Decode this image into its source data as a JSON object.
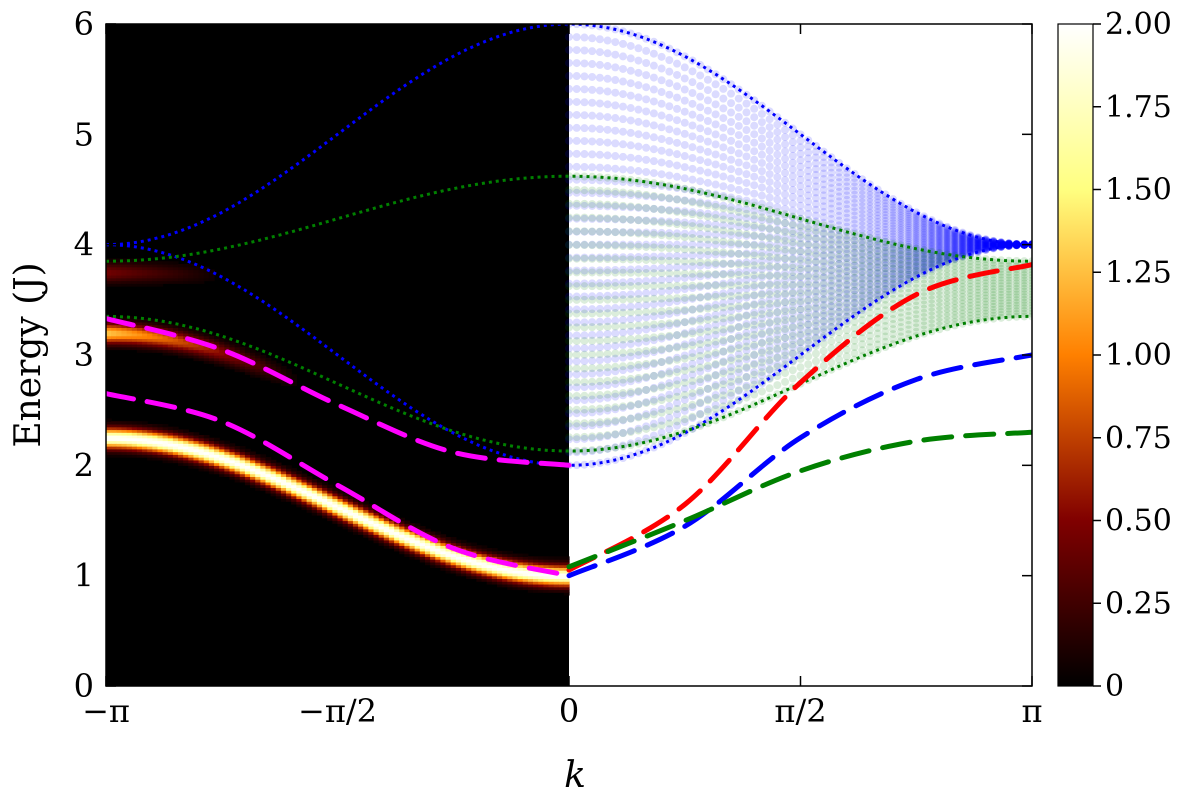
{
  "chart_data": {
    "type": "heatmap",
    "title": "",
    "xlabel": "k",
    "ylabel": "Energy (J)",
    "xlim": [
      -3.14159,
      3.14159
    ],
    "ylim": [
      0,
      6
    ],
    "x_ticks": [
      {
        "value": -3.14159,
        "label": "−π"
      },
      {
        "value": -1.5708,
        "label": "−π/2"
      },
      {
        "value": 0,
        "label": "0"
      },
      {
        "value": 1.5708,
        "label": "π/2"
      },
      {
        "value": 3.14159,
        "label": "π"
      }
    ],
    "y_ticks": [
      {
        "value": 0,
        "label": "0"
      },
      {
        "value": 1,
        "label": "1"
      },
      {
        "value": 2,
        "label": "2"
      },
      {
        "value": 3,
        "label": "3"
      },
      {
        "value": 4,
        "label": "4"
      },
      {
        "value": 5,
        "label": "5"
      },
      {
        "value": 6,
        "label": "6"
      }
    ],
    "colorbar": {
      "min": 0,
      "max": 2,
      "colormap": "afmhot",
      "ticks": [
        {
          "value": 0,
          "label": "0"
        },
        {
          "value": 0.25,
          "label": "0.25"
        },
        {
          "value": 0.5,
          "label": "0.50"
        },
        {
          "value": 0.75,
          "label": "0.75"
        },
        {
          "value": 1.0,
          "label": "1.00"
        },
        {
          "value": 1.25,
          "label": "1.25"
        },
        {
          "value": 1.5,
          "label": "1.50"
        },
        {
          "value": 1.75,
          "label": "1.75"
        },
        {
          "value": 2.0,
          "label": "2.00"
        }
      ]
    },
    "heatmap_bands": [
      {
        "center_at_minus_pi": 2.25,
        "center_at_zero": 1.0,
        "peak_intensity": 2.0
      },
      {
        "center_at_minus_pi": 3.2,
        "center_at_zero": 2.0,
        "peak_intensity": 1.3,
        "visible_until_k": -1.8
      },
      {
        "center_at_minus_pi": 3.75,
        "center_at_zero": 3.6,
        "peak_intensity": 0.45,
        "visible_until_k": -2.3
      }
    ],
    "continuum_blue": {
      "color": "#0000ff",
      "lower_at_zero": 2.0,
      "lower_at_pi": 4.0,
      "upper_at_zero": 6.0,
      "upper_at_pi": 4.0
    },
    "continuum_green": {
      "color": "#008000",
      "lower_at_zero": 2.13,
      "lower_at_pi": 3.35,
      "upper_at_zero": 4.62,
      "upper_at_pi": 3.85
    },
    "dashed_series": [
      {
        "color": "#ff00ff",
        "x": [
          -3.14159,
          -2.36,
          -1.57,
          -0.79,
          0
        ],
        "y": [
          2.65,
          2.4,
          1.82,
          1.25,
          1.0
        ]
      },
      {
        "color": "#ff00ff",
        "x": [
          -3.14159,
          -2.36,
          -1.57,
          -0.79,
          0
        ],
        "y": [
          3.33,
          3.05,
          2.55,
          2.12,
          2.0
        ]
      },
      {
        "color": "#ff0000",
        "x": [
          0,
          0.79,
          1.57,
          2.36,
          3.14159
        ],
        "y": [
          1.05,
          1.65,
          2.75,
          3.55,
          3.82
        ]
      },
      {
        "color": "#0000ff",
        "x": [
          0,
          0.79,
          1.57,
          2.36,
          3.14159
        ],
        "y": [
          1.0,
          1.45,
          2.25,
          2.78,
          3.0
        ]
      },
      {
        "color": "#008000",
        "x": [
          0,
          0.79,
          1.57,
          2.36,
          3.14159
        ],
        "y": [
          1.08,
          1.5,
          1.95,
          2.22,
          2.3
        ]
      }
    ]
  }
}
